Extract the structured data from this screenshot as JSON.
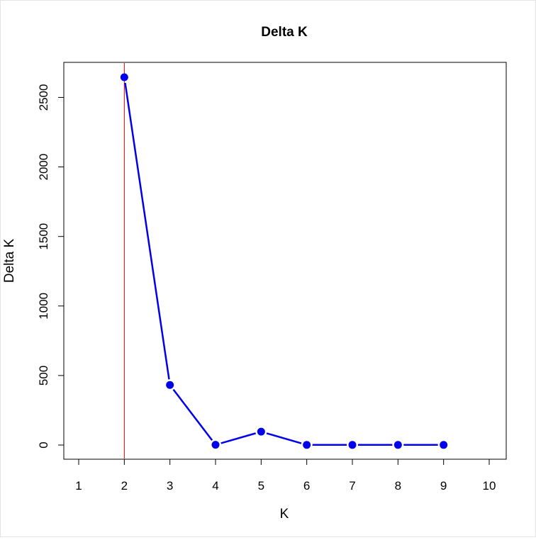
{
  "chart_data": {
    "type": "line",
    "title": "Delta K",
    "xlabel": "K",
    "ylabel": "Delta K",
    "xlim": [
      1,
      10
    ],
    "ylim": [
      0,
      2645
    ],
    "x_ticks": [
      1,
      2,
      3,
      4,
      5,
      6,
      7,
      8,
      9,
      10
    ],
    "y_ticks": [
      0,
      500,
      1000,
      1500,
      2000,
      2500
    ],
    "grid": false,
    "legend": "none",
    "series": [
      {
        "x": [
          2,
          3,
          4,
          5,
          6,
          7,
          8,
          9
        ],
        "values": [
          2645,
          432,
          2,
          96,
          1,
          1,
          1,
          1
        ],
        "color": "#0000ee"
      }
    ],
    "reference_line": {
      "orientation": "vertical",
      "x": 2,
      "color": "#cc0000"
    }
  }
}
